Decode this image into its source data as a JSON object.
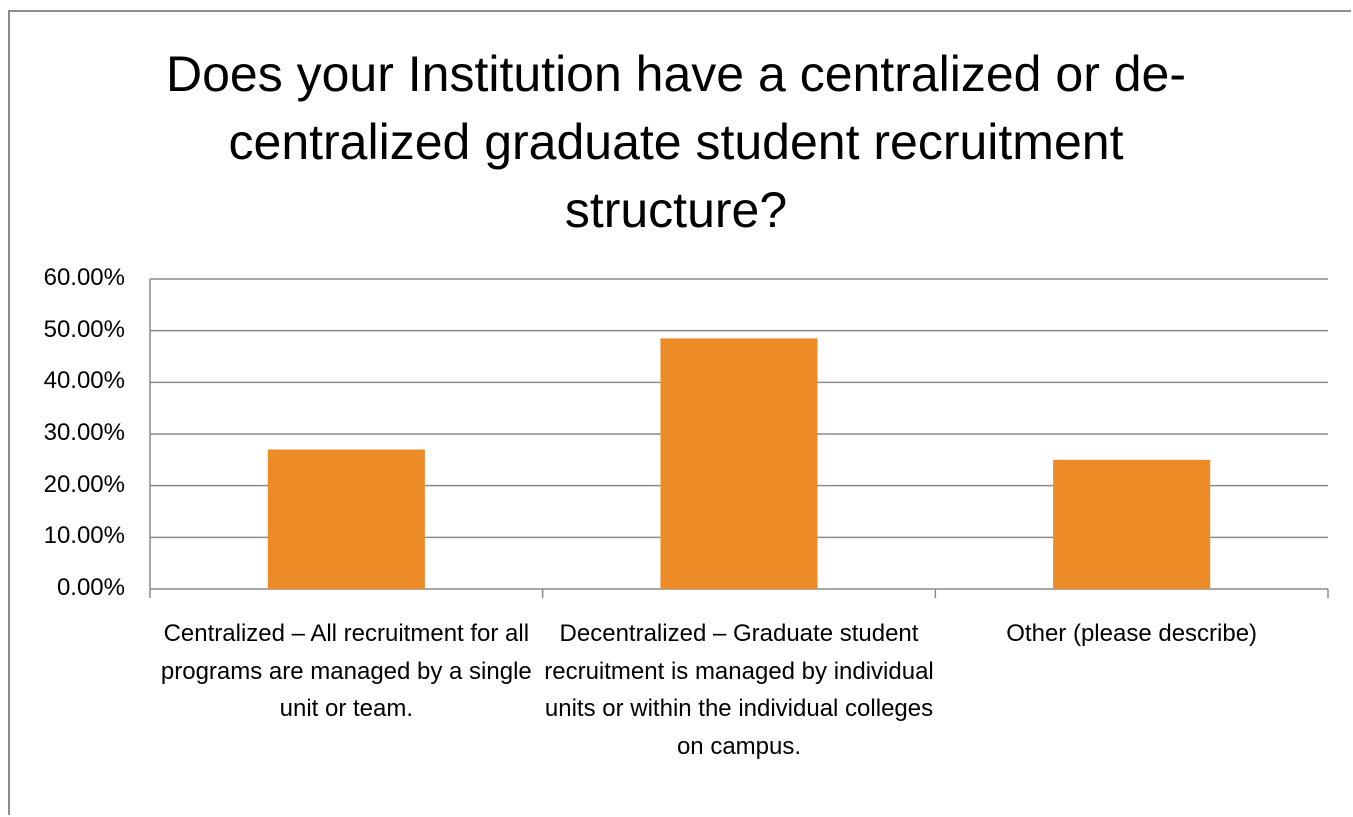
{
  "chart_data": {
    "type": "bar",
    "title": "Does your Institution have a centralized or de-centralized graduate student recruitment structure?",
    "categories": [
      "Centralized – All recruitment for all programs are managed by a single unit or team.",
      "Decentralized – Graduate student recruitment is managed by individual units or within the individual colleges on campus.",
      "Other (please describe)"
    ],
    "values": [
      27,
      48.5,
      25
    ],
    "color": "#ed8b27",
    "ylim": [
      0,
      60
    ],
    "yticks": [
      {
        "value": 0,
        "label": "0.00%"
      },
      {
        "value": 10,
        "label": "10.00%"
      },
      {
        "value": 20,
        "label": "20.00%"
      },
      {
        "value": 30,
        "label": "30.00%"
      },
      {
        "value": 40,
        "label": "40.00%"
      },
      {
        "value": 50,
        "label": "50.00%"
      },
      {
        "value": 60,
        "label": "60.00%"
      }
    ],
    "grid": true
  }
}
